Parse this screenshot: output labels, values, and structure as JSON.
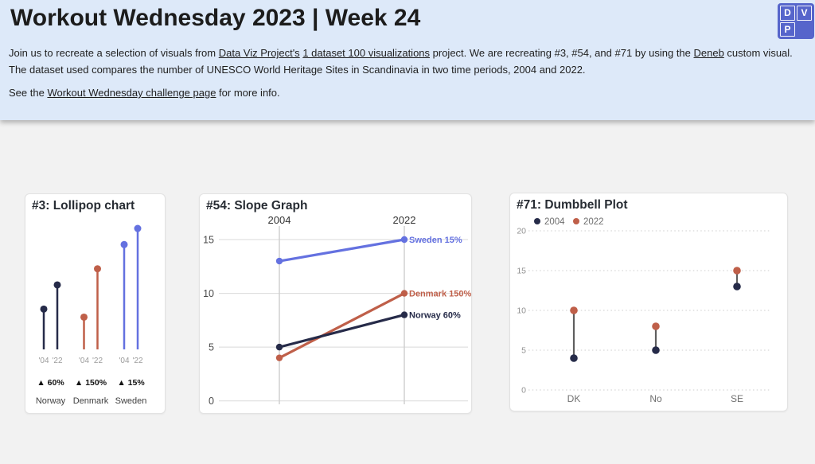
{
  "colors": {
    "navy": "#262b49",
    "terracotta": "#bf5f49",
    "periwinkle": "#6471e0",
    "connector_gray": "#5f5f5f",
    "header_bg": "#dde9f9",
    "page_bg": "#f2f2f2",
    "logo_blue": "#5665cb"
  },
  "header": {
    "title": "Workout Wednesday 2023 | Week 24",
    "line1": {
      "s1": "Join us to recreate a selection of visuals from ",
      "link1": "Data Viz Project's",
      "s2": " ",
      "link2": "1 dataset 100 visualizations",
      "s3": " project. We are recreating #3, #54, and #71 by using the ",
      "link3": "Deneb",
      "s4": " custom visual."
    },
    "line2": "The dataset used compares the number of UNESCO World Heritage Sites in Scandinavia in two time periods, 2004 and 2022.",
    "line3": {
      "s1": "See the ",
      "link": "Workout Wednesday challenge page",
      "s2": " for more info."
    },
    "logo_letters": [
      "D",
      "V",
      "P"
    ]
  },
  "chart_data": [
    {
      "type": "lollipop",
      "title": "#3: Lollipop chart",
      "x_tick_labels": [
        "'04",
        "'22"
      ],
      "ylim": [
        0,
        16
      ],
      "groups": [
        {
          "country": "Norway",
          "change_label": "▲ 60%",
          "color_key": "navy",
          "values": [
            5,
            8
          ]
        },
        {
          "country": "Denmark",
          "change_label": "▲ 150%",
          "color_key": "terracotta",
          "values": [
            4,
            10
          ]
        },
        {
          "country": "Sweden",
          "change_label": "▲ 15%",
          "color_key": "periwinkle",
          "values": [
            13,
            15
          ]
        }
      ]
    },
    {
      "type": "slope",
      "title": "#54: Slope Graph",
      "x_categories": [
        "2004",
        "2022"
      ],
      "y_ticks": [
        0,
        5,
        10,
        15
      ],
      "ylim": [
        0,
        16.2
      ],
      "series": [
        {
          "name": "Sweden",
          "label": "Sweden 15%",
          "color_key": "periwinkle",
          "values": [
            13,
            15
          ]
        },
        {
          "name": "Denmark",
          "label": "Denmark 150%",
          "color_key": "terracotta",
          "values": [
            4,
            10
          ]
        },
        {
          "name": "Norway",
          "label": "Norway 60%",
          "color_key": "navy",
          "values": [
            5,
            8
          ]
        }
      ]
    },
    {
      "type": "dumbbell",
      "title": "#71: Dumbbell Plot",
      "categories": [
        "DK",
        "No",
        "SE"
      ],
      "y_ticks": [
        0,
        5,
        10,
        15,
        20
      ],
      "ylim": [
        0,
        20
      ],
      "legend": [
        "2004",
        "2022"
      ],
      "series": [
        {
          "name": "2004",
          "color_key": "navy",
          "values": [
            4,
            5,
            13
          ]
        },
        {
          "name": "2022",
          "color_key": "terracotta",
          "values": [
            10,
            8,
            15
          ]
        }
      ]
    }
  ]
}
